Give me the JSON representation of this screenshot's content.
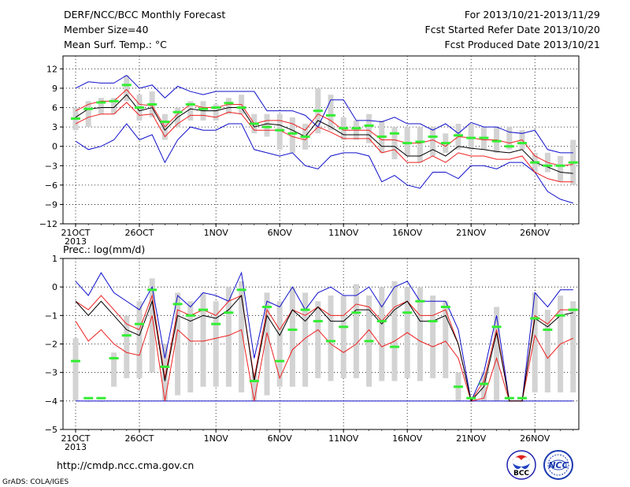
{
  "header": {
    "title": "DERF/NCC/BCC Monthly Forecast",
    "member_size": "Member Size=40",
    "variable": "Mean Surf. Temp.: °C",
    "period": "For 2013/10/21-2013/11/29",
    "start_date": "Fcst Started Refer Date 2013/10/20",
    "produced_date": "Fcst Produced Date 2013/10/21"
  },
  "footer": {
    "url": "http://cmdp.ncc.cma.gov.cn",
    "credit": "GrADS: COLA/IGES",
    "logo_bcc": "BCC",
    "logo_ncc": "NCC"
  },
  "colors": {
    "box": "#d3d3d3",
    "median": "#33ee33",
    "mean": "#000000",
    "inner": "#ee2020",
    "outer": "#1010cc"
  },
  "chart_data": [
    {
      "type": "line",
      "title": "",
      "ylabel": "",
      "xlabel": "",
      "ylim": [
        -12,
        14
      ],
      "yticks": [
        12,
        9,
        6,
        3,
        0,
        -3,
        -6,
        -9,
        -12
      ],
      "xtick_labels": [
        {
          "day": 1,
          "label": "21OCT",
          "sub": "2013"
        },
        {
          "day": 6,
          "label": "26OCT"
        },
        {
          "day": 12,
          "label": "1NOV"
        },
        {
          "day": 17,
          "label": "6NOV"
        },
        {
          "day": 22,
          "label": "11NOV"
        },
        {
          "day": 27,
          "label": "16NOV"
        },
        {
          "day": 32,
          "label": "21NOV"
        },
        {
          "day": 37,
          "label": "26NOV"
        }
      ],
      "days": [
        1,
        2,
        3,
        4,
        5,
        6,
        7,
        8,
        9,
        10,
        11,
        12,
        13,
        14,
        15,
        16,
        17,
        18,
        19,
        20,
        21,
        22,
        23,
        24,
        25,
        26,
        27,
        28,
        29,
        30,
        31,
        32,
        33,
        34,
        35,
        36,
        37,
        38,
        39,
        40
      ],
      "series": {
        "outer_upper": [
          9,
          10,
          9.8,
          9.8,
          11,
          9,
          9.5,
          7.5,
          9.3,
          8.5,
          8,
          8.5,
          8.5,
          8.5,
          8.5,
          5.5,
          5.5,
          5.5,
          4.8,
          3,
          7.2,
          7.2,
          4,
          4,
          3.8,
          4.5,
          3.5,
          3.5,
          2.5,
          3.5,
          2,
          3.7,
          3,
          3,
          2.2,
          2,
          2.5,
          -0.5,
          -1,
          -1
        ],
        "inner_upper": [
          5.5,
          6.5,
          7,
          7,
          8.8,
          6.5,
          6.3,
          3,
          5,
          6.5,
          6,
          6,
          6.5,
          6.5,
          3.5,
          4,
          4,
          3.5,
          2.5,
          5,
          4,
          2.5,
          2.5,
          2.5,
          1,
          1,
          0.5,
          0.5,
          1,
          0,
          1.5,
          1.3,
          1,
          1,
          0.5,
          1,
          -1.5,
          -2.5,
          -3,
          -2.8
        ],
        "mean": [
          4.5,
          5.8,
          6,
          6,
          8,
          5.5,
          6,
          2.5,
          4.5,
          5.8,
          5.5,
          5.5,
          6,
          6,
          3,
          3.5,
          3.3,
          2.5,
          1.5,
          4,
          3,
          1.8,
          1.8,
          1.8,
          0,
          0,
          -1.5,
          -1.5,
          -0.5,
          -1.5,
          0,
          -0.3,
          -0.5,
          -0.8,
          -1,
          -0.5,
          -2.5,
          -3.2,
          -4,
          -4.2
        ],
        "inner_lower": [
          3.5,
          4.5,
          5,
          5,
          6.8,
          4.8,
          5,
          1.5,
          3.5,
          4.8,
          4.8,
          4.5,
          5.3,
          5,
          2.5,
          2.5,
          2.5,
          1.5,
          1,
          3,
          2.2,
          1.2,
          1.2,
          1.2,
          -1,
          -0.5,
          -2.5,
          -2.5,
          -1.5,
          -2.5,
          -1,
          -1.5,
          -1.5,
          -2,
          -2,
          -1.5,
          -4,
          -5,
          -5.5,
          -5.5
        ],
        "outer_lower": [
          0.8,
          -0.5,
          0,
          1,
          3.5,
          1,
          1.8,
          -2.5,
          1,
          3,
          2.5,
          2.5,
          3.5,
          3.5,
          -0.5,
          -1,
          -1.5,
          -1,
          -3,
          -3.5,
          -1.5,
          -1,
          -1,
          -1.5,
          -5.5,
          -4.5,
          -6,
          -6.5,
          -4,
          -4,
          -5,
          -3,
          -3,
          -3.5,
          -2.5,
          -2.5,
          -4,
          -7,
          -8.2,
          -8.8
        ],
        "median": [
          4.3,
          5.8,
          6.8,
          7,
          9.5,
          6,
          6.5,
          3.8,
          5.3,
          6.5,
          5.8,
          6,
          6.7,
          6,
          3.5,
          3,
          2.5,
          2,
          1.5,
          5.5,
          4.8,
          2.8,
          2.8,
          3.2,
          1.5,
          2,
          0.5,
          0.7,
          1.5,
          0.5,
          1.7,
          1.3,
          1.3,
          0.8,
          0,
          0.5,
          -2.5,
          -3,
          -3,
          -2.5
        ]
      },
      "box_ranges": [
        [
          2.5,
          6
        ],
        [
          3,
          7
        ],
        [
          5,
          7.5
        ],
        [
          5,
          7.5
        ],
        [
          7,
          11
        ],
        [
          4,
          8
        ],
        [
          4.5,
          8.5
        ],
        [
          1,
          5
        ],
        [
          3,
          6
        ],
        [
          4,
          7
        ],
        [
          4,
          7
        ],
        [
          4,
          6.5
        ],
        [
          5,
          7.5
        ],
        [
          5,
          8
        ],
        [
          2,
          5
        ],
        [
          1.5,
          5
        ],
        [
          -0.5,
          5
        ],
        [
          -1,
          4.5
        ],
        [
          -0.5,
          3.5
        ],
        [
          2,
          9
        ],
        [
          2.5,
          8
        ],
        [
          1,
          4.5
        ],
        [
          1,
          4
        ],
        [
          0.5,
          5
        ],
        [
          -1,
          4
        ],
        [
          -2,
          3
        ],
        [
          -1.5,
          3
        ],
        [
          -2.5,
          3
        ],
        [
          -1.5,
          3
        ],
        [
          -1,
          2
        ],
        [
          -0.5,
          3.5
        ],
        [
          -0.5,
          3.5
        ],
        [
          -0.5,
          3
        ],
        [
          -1,
          3
        ],
        [
          -0.5,
          3
        ],
        [
          -0.5,
          2.5
        ],
        [
          -4,
          -1
        ],
        [
          -4,
          -1
        ],
        [
          -5.5,
          -1.5
        ],
        [
          -6,
          1
        ]
      ]
    },
    {
      "type": "line",
      "title": "Prec.: log(mm/d)",
      "ylabel": "",
      "xlabel": "",
      "ylim": [
        -5,
        1
      ],
      "yticks": [
        1,
        0,
        -1,
        -2,
        -3,
        -4,
        -5
      ],
      "xtick_labels": [
        {
          "day": 1,
          "label": "21OCT",
          "sub": "2013"
        },
        {
          "day": 6,
          "label": "26OCT"
        },
        {
          "day": 12,
          "label": "1NOV"
        },
        {
          "day": 17,
          "label": "6NOV"
        },
        {
          "day": 22,
          "label": "11NOV"
        },
        {
          "day": 27,
          "label": "16NOV"
        },
        {
          "day": 32,
          "label": "21NOV"
        },
        {
          "day": 37,
          "label": "26NOV"
        }
      ],
      "days": [
        1,
        2,
        3,
        4,
        5,
        6,
        7,
        8,
        9,
        10,
        11,
        12,
        13,
        14,
        15,
        16,
        17,
        18,
        19,
        20,
        21,
        22,
        23,
        24,
        25,
        26,
        27,
        28,
        29,
        30,
        31,
        32,
        33,
        34,
        35,
        36,
        37,
        38,
        39,
        40
      ],
      "series": {
        "outer_upper": [
          0.2,
          -0.3,
          0.5,
          -0.2,
          -0.5,
          -0.8,
          0,
          -2.5,
          -0.3,
          -0.7,
          -0.2,
          -0.3,
          -0.5,
          0.5,
          -2.5,
          -0.5,
          -0.7,
          0,
          -0.8,
          -0.2,
          0,
          -0.3,
          -0.3,
          0,
          -0.7,
          0,
          0.2,
          -0.5,
          -0.5,
          -0.5,
          -1.5,
          -4,
          -3,
          -1,
          -4,
          -4,
          -0.2,
          -0.7,
          -0.1,
          -0.1
        ],
        "inner_upper": [
          -0.5,
          -0.8,
          -0.3,
          -0.8,
          -1.3,
          -1.5,
          -0.3,
          -3.2,
          -0.8,
          -1,
          -0.8,
          -1,
          -0.5,
          -0.3,
          -3.2,
          -0.8,
          -1.5,
          -0.8,
          -1,
          -0.7,
          -1,
          -1,
          -0.6,
          -0.7,
          -1.2,
          -0.7,
          -0.5,
          -1,
          -1,
          -0.8,
          -2,
          -4,
          -3.3,
          -1.5,
          -4,
          -4,
          -1,
          -1.3,
          -0.8,
          -0.8
        ],
        "mean": [
          -0.5,
          -1,
          -0.5,
          -1,
          -1.5,
          -1.7,
          -0.5,
          -3.3,
          -1,
          -1.2,
          -1,
          -1.1,
          -0.8,
          -0.3,
          -3.3,
          -1,
          -1.7,
          -0.8,
          -1.2,
          -0.7,
          -1.2,
          -1.2,
          -0.8,
          -0.8,
          -1.3,
          -0.8,
          -0.5,
          -1.2,
          -1.2,
          -1,
          -2,
          -4,
          -3.5,
          -1.6,
          -4,
          -4,
          -1.1,
          -1.4,
          -1,
          -0.9
        ],
        "inner_lower": [
          -1.2,
          -1.9,
          -1.5,
          -2,
          -2.3,
          -2.4,
          -1,
          -4,
          -1.5,
          -1.9,
          -1.9,
          -1.8,
          -1.7,
          -1.5,
          -4,
          -1.6,
          -3.2,
          -2.2,
          -1.8,
          -1.5,
          -2,
          -2.3,
          -2,
          -1.5,
          -2.1,
          -1.9,
          -1.6,
          -1.9,
          -2.1,
          -1.9,
          -2.5,
          -4,
          -3.9,
          -2.5,
          -4,
          -4,
          -1.7,
          -2.5,
          -2,
          -1.8
        ],
        "outer_lower": [
          -4,
          -4,
          -4,
          -4,
          -4,
          -4,
          -4,
          -4,
          -4,
          -4,
          -4,
          -4,
          -4,
          -4,
          -4,
          -4,
          -4,
          -4,
          -4,
          -4,
          -4,
          -4,
          -4,
          -4,
          -4,
          -4,
          -4,
          -4,
          -4,
          -4,
          -4,
          -4,
          -4,
          -4,
          -4,
          -4,
          -4,
          -4,
          -4,
          -4
        ],
        "median": [
          -2.6,
          -3.9,
          -3.9,
          -2.5,
          -1.7,
          -1.3,
          -0.1,
          -2.8,
          -0.6,
          -1,
          -0.8,
          -1.3,
          -0.9,
          -0.1,
          -3.3,
          -0.7,
          -2.6,
          -1.5,
          -0.8,
          -1.2,
          -1.9,
          -1.4,
          -0.9,
          -1.9,
          -1.2,
          -2.1,
          -0.9,
          -0.5,
          -1.2,
          -0.7,
          -3.5,
          -3.9,
          -3.4,
          -1.4,
          -3.9,
          -3.9,
          -1.1,
          -1.5,
          -1,
          -0.8
        ]
      },
      "box_ranges": [
        [
          -4,
          -1.8
        ],
        [
          -4,
          -4
        ],
        [
          -4,
          -4
        ],
        [
          -3.5,
          -2.3
        ],
        [
          -3.2,
          -1
        ],
        [
          -3.2,
          -0.5
        ],
        [
          -3,
          0.3
        ],
        [
          -4,
          -2
        ],
        [
          -3.8,
          -0.2
        ],
        [
          -3.7,
          -0.5
        ],
        [
          -3.5,
          -0.2
        ],
        [
          -3.5,
          -0.5
        ],
        [
          -3.5,
          0
        ],
        [
          -3.7,
          0.2
        ],
        [
          -4,
          -3
        ],
        [
          -3.8,
          -0.2
        ],
        [
          -3.5,
          -0.5
        ],
        [
          -3.5,
          0
        ],
        [
          -3.5,
          -0.2
        ],
        [
          -3.2,
          -0.5
        ],
        [
          -3.3,
          -0.3
        ],
        [
          -3.2,
          -0.3
        ],
        [
          -3.2,
          0.1
        ],
        [
          -3.5,
          -0.3
        ],
        [
          -3.3,
          0
        ],
        [
          -3.3,
          0.2
        ],
        [
          -3.2,
          0
        ],
        [
          -3.3,
          0
        ],
        [
          -3.2,
          -0.3
        ],
        [
          -3.2,
          -0.5
        ],
        [
          -4,
          -3
        ],
        [
          -4,
          -4
        ],
        [
          -4,
          -3
        ],
        [
          -4,
          -0.7
        ],
        [
          -4,
          -4
        ],
        [
          -4,
          -4
        ],
        [
          -3.7,
          -0.2
        ],
        [
          -3.7,
          -0.8
        ],
        [
          -3.7,
          -0.3
        ],
        [
          -3.7,
          -0.5
        ]
      ]
    }
  ]
}
